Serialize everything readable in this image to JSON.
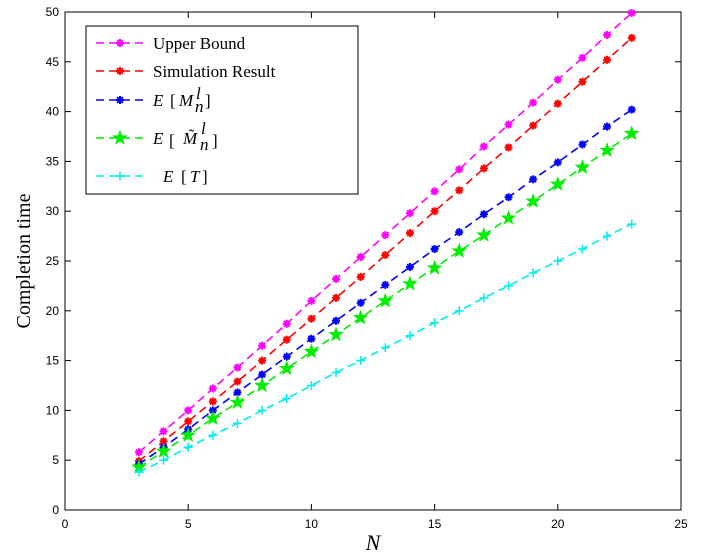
{
  "chart_data": {
    "type": "line",
    "xlabel": "N",
    "ylabel": "Completion time",
    "xlim": [
      0,
      25
    ],
    "ylim": [
      0,
      50
    ],
    "x_ticks": [
      0,
      5,
      10,
      15,
      20,
      25
    ],
    "y_ticks": [
      0,
      5,
      10,
      15,
      20,
      25,
      30,
      35,
      40,
      45,
      50
    ],
    "grid": false,
    "legend_position": "top-left",
    "x": [
      3,
      4,
      5,
      6,
      7,
      8,
      9,
      10,
      11,
      12,
      13,
      14,
      15,
      16,
      17,
      18,
      19,
      20,
      21,
      22,
      23
    ],
    "series": [
      {
        "name": "Upper Bound",
        "color": "#ff00ff",
        "marker": "asterisk",
        "values": [
          5.8,
          7.9,
          10.0,
          12.2,
          14.3,
          16.5,
          18.7,
          21.0,
          23.2,
          25.4,
          27.6,
          29.8,
          32.0,
          34.2,
          36.5,
          38.7,
          40.9,
          43.2,
          45.4,
          47.7,
          49.9
        ]
      },
      {
        "name": "Simulation Result",
        "color": "#ff0000",
        "marker": "asterisk",
        "values": [
          4.9,
          6.9,
          8.9,
          10.9,
          12.9,
          15.0,
          17.1,
          19.2,
          21.3,
          23.4,
          25.6,
          27.8,
          30.0,
          32.1,
          34.3,
          36.4,
          38.6,
          40.8,
          43.0,
          45.2,
          47.4
        ]
      },
      {
        "name": "E[M_n^l]",
        "color": "#0000ff",
        "marker": "asterisk",
        "values": [
          4.6,
          6.3,
          8.1,
          10.0,
          11.8,
          13.6,
          15.4,
          17.2,
          19.0,
          20.8,
          22.6,
          24.4,
          26.2,
          27.9,
          29.7,
          31.4,
          33.2,
          34.9,
          36.7,
          38.5,
          40.2
        ]
      },
      {
        "name": "E[M̃_n^l]",
        "color": "#00ee00",
        "marker": "star",
        "values": [
          4.3,
          5.9,
          7.5,
          9.2,
          10.8,
          12.5,
          14.2,
          15.9,
          17.6,
          19.3,
          21.0,
          22.7,
          24.3,
          26.0,
          27.6,
          29.3,
          31.0,
          32.7,
          34.4,
          36.1,
          37.8
        ]
      },
      {
        "name": "E[T]",
        "color": "#00eeee",
        "marker": "plus",
        "values": [
          3.8,
          5.0,
          6.3,
          7.5,
          8.7,
          10.0,
          11.2,
          12.5,
          13.8,
          15.0,
          16.3,
          17.5,
          18.8,
          20.0,
          21.3,
          22.5,
          23.8,
          25.0,
          26.2,
          27.5,
          28.7
        ]
      }
    ]
  },
  "legend": {
    "upper_bound": "Upper Bound",
    "simulation": "Simulation Result",
    "e_prefix": "E",
    "m_symbol": "M",
    "m_tilde_symbol": "M̃",
    "sub_n": "n",
    "sup_l": "l",
    "t_symbol": "T"
  }
}
